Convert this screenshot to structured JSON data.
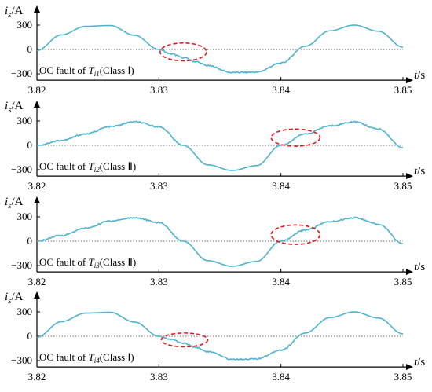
{
  "figure": {
    "colors": {
      "curve": "#4db3cf",
      "axis": "#000000",
      "zero_line": "#666666",
      "highlight": "#e0191e"
    }
  },
  "chart_data": [
    {
      "type": "line",
      "panel": "1",
      "ylabel": "i_s/A",
      "ylabel_main": "i",
      "ylabel_sub": "s",
      "ylabel_unit": "/A",
      "xlabel": "t/s",
      "xlabel_main": "t",
      "xlabel_unit": "/s",
      "xlim": [
        3.82,
        3.85
      ],
      "ylim": [
        -330,
        330
      ],
      "x_ticks": [
        "3.82",
        "3.83",
        "3.84",
        "3.85"
      ],
      "y_ticks": [
        "300",
        "0",
        "−300"
      ],
      "y_tick_values": [
        300,
        0,
        -300
      ],
      "annotation_prefix": "OC fault of ",
      "annotation_T": "T",
      "annotation_sub": "i1",
      "annotation_suffix": "(Class Ⅰ)",
      "fault_class": "Ⅰ",
      "highlight_region": {
        "x": [
          3.8301,
          3.8339
        ],
        "y": [
          -140,
          80
        ]
      },
      "series": [
        {
          "fault_start": 3.831,
          "period": 0.02,
          "amplitude": 300,
          "phase_deg": 270
        }
      ],
      "x": [
        3.82,
        3.822,
        3.824,
        3.826,
        3.828,
        3.83,
        3.831,
        3.832,
        3.833,
        3.834,
        3.836,
        3.838,
        3.84,
        3.842,
        3.844,
        3.846,
        3.848,
        3.85
      ],
      "values": [
        -12,
        180,
        285,
        295,
        175,
        0,
        -55,
        -100,
        -150,
        -200,
        -285,
        -280,
        -170,
        40,
        230,
        300,
        225,
        30
      ]
    },
    {
      "type": "line",
      "panel": "2",
      "ylabel": "i_s/A",
      "ylabel_main": "i",
      "ylabel_sub": "s",
      "ylabel_unit": "/A",
      "xlabel": "t/s",
      "xlabel_main": "t",
      "xlabel_unit": "/s",
      "xlim": [
        3.82,
        3.85
      ],
      "ylim": [
        -330,
        330
      ],
      "x_ticks": [
        "3.82",
        "3.83",
        "3.84",
        "3.85"
      ],
      "y_ticks": [
        "300",
        "0",
        "−300"
      ],
      "y_tick_values": [
        300,
        0,
        -300
      ],
      "annotation_prefix": "OC fault of ",
      "annotation_T": "T",
      "annotation_sub": "i2",
      "annotation_suffix": "(Class Ⅱ)",
      "fault_class": "Ⅱ",
      "highlight_region": {
        "x": [
          3.8392,
          3.8432
        ],
        "y": [
          -10,
          200
        ]
      },
      "series": [
        {
          "period": 0.02,
          "amplitude": 300
        }
      ],
      "x": [
        3.82,
        3.822,
        3.824,
        3.826,
        3.828,
        3.83,
        3.832,
        3.834,
        3.836,
        3.838,
        3.84,
        3.842,
        3.844,
        3.846,
        3.848,
        3.85
      ],
      "values": [
        0,
        60,
        140,
        230,
        290,
        230,
        0,
        -240,
        -310,
        -250,
        0,
        140,
        240,
        290,
        200,
        -30
      ]
    },
    {
      "type": "line",
      "panel": "3",
      "ylabel": "i_s/A",
      "ylabel_main": "i",
      "ylabel_sub": "s",
      "ylabel_unit": "/A",
      "xlabel": "t/s",
      "xlabel_main": "t",
      "xlabel_unit": "/s",
      "xlim": [
        3.82,
        3.85
      ],
      "ylim": [
        -330,
        330
      ],
      "x_ticks": [
        "3.82",
        "3.83",
        "3.84",
        "3.85"
      ],
      "y_ticks": [
        "300",
        "0",
        "−300"
      ],
      "y_tick_values": [
        300,
        0,
        -300
      ],
      "annotation_prefix": "OC fault of ",
      "annotation_T": "T",
      "annotation_sub": "i3",
      "annotation_suffix": "(Class Ⅱ)",
      "fault_class": "Ⅱ",
      "highlight_region": {
        "x": [
          3.8392,
          3.8432
        ],
        "y": [
          -40,
          200
        ]
      },
      "series": [
        {
          "period": 0.02,
          "amplitude": 300
        }
      ],
      "x": [
        3.82,
        3.822,
        3.824,
        3.826,
        3.828,
        3.83,
        3.832,
        3.834,
        3.836,
        3.838,
        3.84,
        3.842,
        3.844,
        3.846,
        3.848,
        3.85
      ],
      "values": [
        0,
        70,
        160,
        250,
        290,
        230,
        0,
        -240,
        -310,
        -250,
        0,
        140,
        240,
        290,
        210,
        -30
      ]
    },
    {
      "type": "line",
      "panel": "4",
      "ylabel": "i_s/A",
      "ylabel_main": "i",
      "ylabel_sub": "s",
      "ylabel_unit": "/A",
      "xlabel": "t/s",
      "xlabel_main": "t",
      "xlabel_unit": "/s",
      "xlim": [
        3.82,
        3.85
      ],
      "ylim": [
        -330,
        330
      ],
      "x_ticks": [
        "3.82",
        "3.83",
        "3.84",
        "3.85"
      ],
      "y_ticks": [
        "300",
        "0",
        "−300"
      ],
      "y_tick_values": [
        300,
        0,
        -300
      ],
      "annotation_prefix": "OC fault of ",
      "annotation_T": "T",
      "annotation_sub": "i4",
      "annotation_suffix": "(Class Ⅰ)",
      "fault_class": "Ⅰ",
      "highlight_region": {
        "x": [
          3.8302,
          3.834
        ],
        "y": [
          -130,
          40
        ]
      },
      "series": [
        {
          "fault_start": 3.831,
          "period": 0.02,
          "amplitude": 300
        }
      ],
      "x": [
        3.82,
        3.822,
        3.824,
        3.826,
        3.828,
        3.83,
        3.831,
        3.832,
        3.833,
        3.834,
        3.836,
        3.838,
        3.84,
        3.842,
        3.844,
        3.846,
        3.848,
        3.85
      ],
      "values": [
        -12,
        180,
        285,
        295,
        175,
        0,
        -40,
        -85,
        -135,
        -190,
        -285,
        -280,
        -170,
        40,
        230,
        300,
        225,
        30
      ]
    }
  ]
}
